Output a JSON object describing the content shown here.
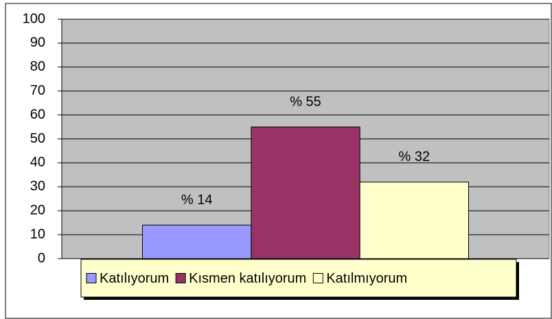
{
  "chart_data": {
    "type": "bar",
    "categories": [
      null
    ],
    "series": [
      {
        "name": "Katılıyorum",
        "color": "#9999ff",
        "values": [
          14
        ],
        "value_labels": [
          "% 14"
        ]
      },
      {
        "name": "Kısmen katılıyorum",
        "color": "#993366",
        "values": [
          55
        ],
        "value_labels": [
          "% 55"
        ]
      },
      {
        "name": "Katılmıyorum",
        "color": "#ffffcc",
        "values": [
          32
        ],
        "value_labels": [
          "% 32"
        ]
      }
    ],
    "ylim": [
      0,
      100
    ],
    "yticks": [
      0,
      10,
      20,
      30,
      40,
      50,
      60,
      70,
      80,
      90,
      100
    ],
    "grid": true,
    "legend": "bottom",
    "plot_background": "#c0c0c0"
  }
}
